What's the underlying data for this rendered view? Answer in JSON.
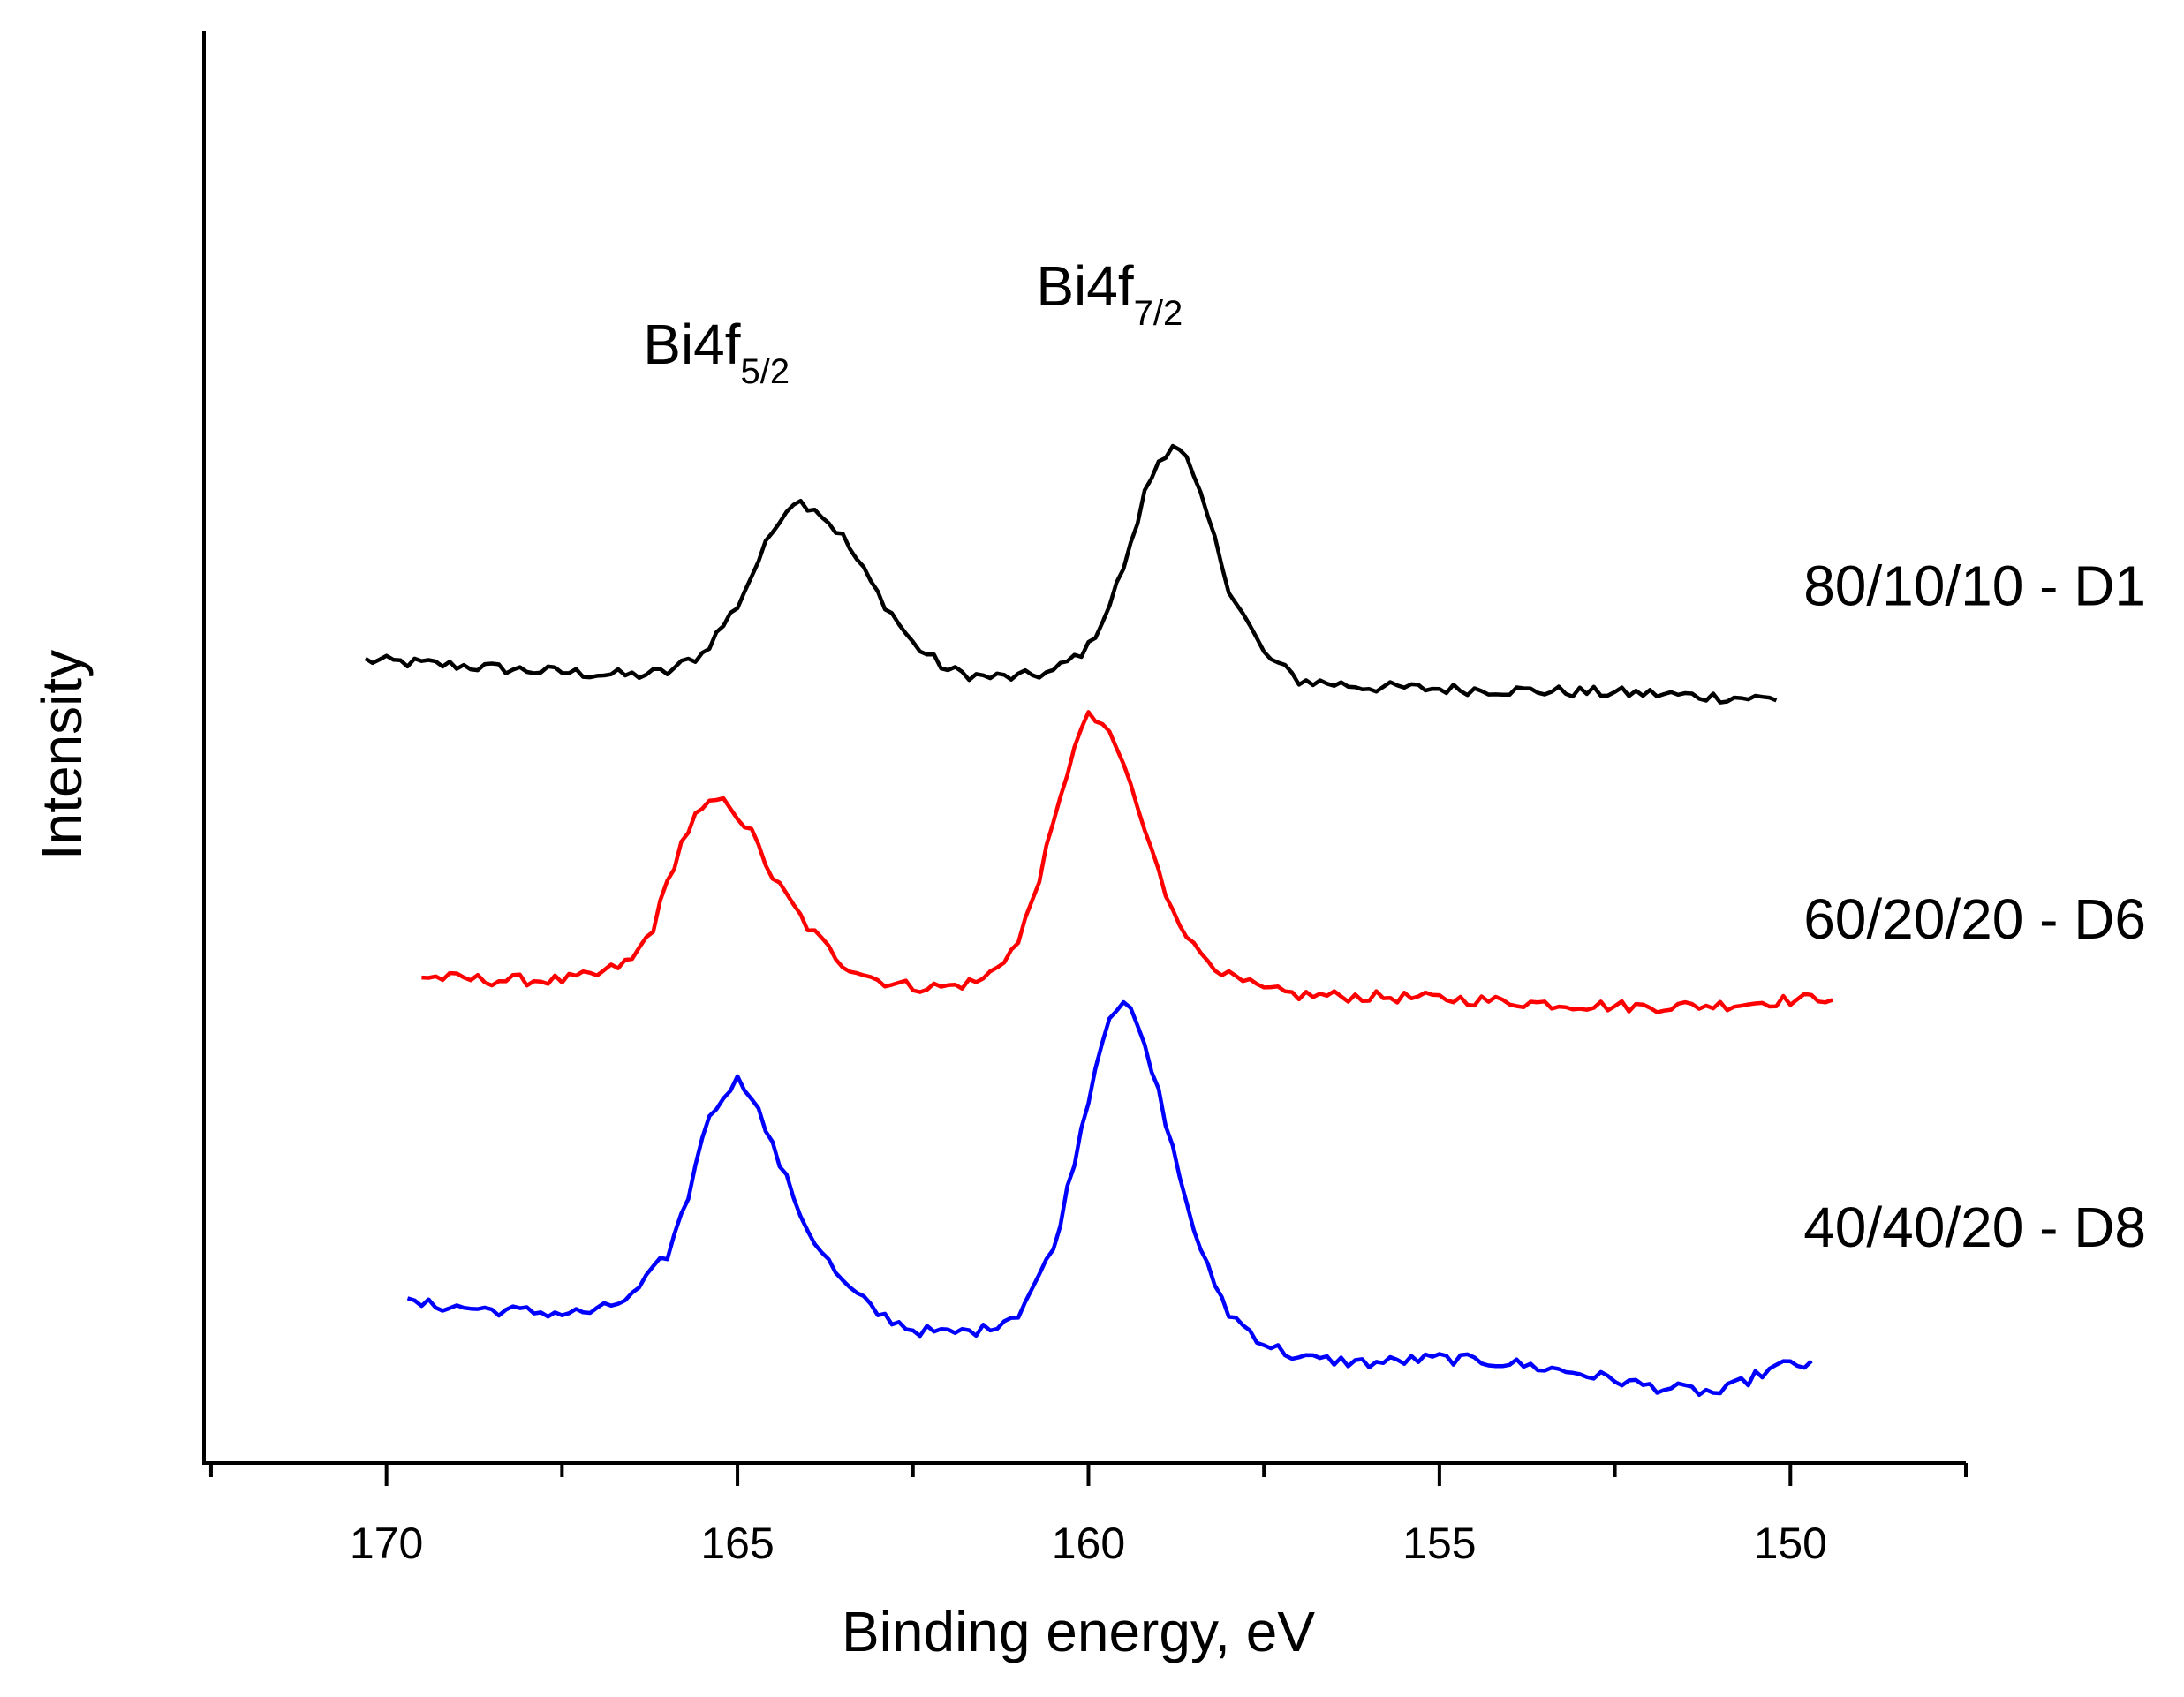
{
  "chart_data": {
    "type": "line",
    "title": "",
    "xlabel": "Binding energy, eV",
    "ylabel": "Intensity",
    "xlim": [
      172.6,
      147.5
    ],
    "x_reversed": true,
    "x_ticks": [
      170,
      165,
      160,
      155,
      150
    ],
    "x_tick_labels": [
      "170",
      "165",
      "160",
      "155",
      "150"
    ],
    "ylim": [
      -0.3,
      8.3
    ],
    "y_ticks_shown": false,
    "grid": false,
    "annotations": [
      {
        "name": "bi4f52",
        "base": "Bi4f",
        "sub": "5/2",
        "x": 165.3,
        "y": 6.3
      },
      {
        "name": "bi4f72",
        "base": "Bi4f",
        "sub": "7/2",
        "x": 159.7,
        "y": 6.65
      }
    ],
    "series": [
      {
        "name": "80/10/10 - D1",
        "color": "#000000",
        "label_y": 4.85,
        "x": [
          170.3,
          169.0,
          168.0,
          167.0,
          166.5,
          166.0,
          165.5,
          165.0,
          164.7,
          164.4,
          164.2,
          163.9,
          163.5,
          163.0,
          162.5,
          162.0,
          161.5,
          161.0,
          160.5,
          160.0,
          159.7,
          159.4,
          159.2,
          159.0,
          158.8,
          158.6,
          158.3,
          158.0,
          157.5,
          157.0,
          156.0,
          155.0,
          154.0,
          153.0,
          152.0,
          151.0,
          150.2
        ],
        "y": [
          4.52,
          4.49,
          4.46,
          4.44,
          4.43,
          4.45,
          4.56,
          4.85,
          5.12,
          5.38,
          5.48,
          5.44,
          5.26,
          4.92,
          4.62,
          4.46,
          4.42,
          4.42,
          4.45,
          4.6,
          4.85,
          5.2,
          5.52,
          5.72,
          5.82,
          5.72,
          5.38,
          4.96,
          4.56,
          4.4,
          4.36,
          4.35,
          4.34,
          4.33,
          4.32,
          4.3,
          4.29
        ]
      },
      {
        "name": "60/20/20 - D6",
        "color": "#ff0000",
        "label_y": 2.85,
        "x": [
          169.5,
          168.5,
          167.5,
          167.0,
          166.5,
          166.2,
          166.0,
          165.8,
          165.6,
          165.3,
          165.1,
          164.8,
          164.5,
          164.0,
          163.5,
          163.0,
          162.5,
          162.0,
          161.5,
          161.0,
          160.7,
          160.4,
          160.2,
          160.0,
          159.8,
          159.5,
          159.2,
          158.9,
          158.5,
          158.0,
          157.5,
          157.0,
          156.0,
          155.0,
          154.0,
          153.0,
          152.0,
          151.0,
          150.0,
          149.4
        ],
        "y": [
          2.62,
          2.6,
          2.6,
          2.63,
          2.72,
          2.92,
          3.18,
          3.42,
          3.58,
          3.68,
          3.65,
          3.48,
          3.22,
          2.92,
          2.7,
          2.6,
          2.56,
          2.56,
          2.6,
          2.82,
          3.22,
          3.68,
          4.02,
          4.18,
          4.14,
          3.9,
          3.5,
          3.12,
          2.8,
          2.62,
          2.54,
          2.51,
          2.5,
          2.49,
          2.47,
          2.45,
          2.44,
          2.45,
          2.48,
          2.5
        ]
      },
      {
        "name": "40/40/20 - D8",
        "color": "#0000ff",
        "label_y": 1.0,
        "x": [
          169.7,
          168.5,
          167.5,
          167.0,
          166.5,
          166.0,
          165.7,
          165.5,
          165.2,
          165.0,
          164.8,
          164.5,
          164.0,
          163.5,
          163.0,
          162.5,
          162.0,
          161.5,
          161.0,
          160.5,
          160.2,
          159.9,
          159.7,
          159.5,
          159.3,
          159.0,
          158.7,
          158.4,
          158.0,
          157.5,
          157.0,
          156.0,
          155.0,
          154.0,
          153.0,
          152.0,
          151.0,
          150.4,
          150.0,
          149.7
        ],
        "y": [
          0.66,
          0.62,
          0.6,
          0.61,
          0.7,
          0.95,
          1.3,
          1.68,
          1.92,
          2.0,
          1.92,
          1.6,
          1.1,
          0.78,
          0.6,
          0.5,
          0.48,
          0.5,
          0.6,
          0.98,
          1.52,
          2.08,
          2.4,
          2.48,
          2.32,
          1.92,
          1.42,
          0.96,
          0.6,
          0.42,
          0.33,
          0.3,
          0.33,
          0.3,
          0.24,
          0.16,
          0.12,
          0.24,
          0.3,
          0.28
        ]
      }
    ]
  }
}
